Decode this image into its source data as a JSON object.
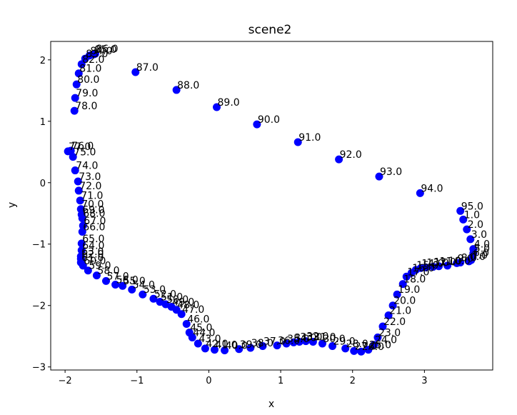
{
  "chart_data": {
    "type": "scatter",
    "title": "scene2",
    "xlabel": "x",
    "ylabel": "y",
    "xlim": [
      -2.2,
      3.95
    ],
    "ylim": [
      -3.05,
      2.3
    ],
    "xticks": [
      -2,
      -1,
      0,
      1,
      2,
      3
    ],
    "yticks": [
      -3,
      -2,
      -1,
      0,
      1,
      2
    ],
    "grid": false,
    "marker_color": "#0000ff",
    "points": [
      {
        "label": "0.0",
        "x": 3.62,
        "y": -1.28
      },
      {
        "label": "1.0",
        "x": 3.54,
        "y": -0.6
      },
      {
        "label": "2.0",
        "x": 3.59,
        "y": -0.76
      },
      {
        "label": "3.0",
        "x": 3.64,
        "y": -0.92
      },
      {
        "label": "4.0",
        "x": 3.68,
        "y": -1.08
      },
      {
        "label": "5.0",
        "x": 3.68,
        "y": -1.15
      },
      {
        "label": "6.0",
        "x": 3.67,
        "y": -1.22
      },
      {
        "label": "7.0",
        "x": 3.65,
        "y": -1.26
      },
      {
        "label": "8.0",
        "x": 3.5,
        "y": -1.3
      },
      {
        "label": "9.0",
        "x": 3.45,
        "y": -1.31
      },
      {
        "label": "10.0",
        "x": 3.32,
        "y": -1.35
      },
      {
        "label": "11.0",
        "x": 3.2,
        "y": -1.36
      },
      {
        "label": "12.0",
        "x": 3.12,
        "y": -1.37
      },
      {
        "label": "13.0",
        "x": 3.02,
        "y": -1.38
      },
      {
        "label": "14.0",
        "x": 2.95,
        "y": -1.39
      },
      {
        "label": "15.0",
        "x": 2.88,
        "y": -1.42
      },
      {
        "label": "16.0",
        "x": 2.82,
        "y": -1.47
      },
      {
        "label": "17.0",
        "x": 2.75,
        "y": -1.53
      },
      {
        "label": "18.0",
        "x": 2.7,
        "y": -1.65
      },
      {
        "label": "19.0",
        "x": 2.62,
        "y": -1.82
      },
      {
        "label": "20.0",
        "x": 2.56,
        "y": -2.0
      },
      {
        "label": "21.0",
        "x": 2.5,
        "y": -2.16
      },
      {
        "label": "22.0",
        "x": 2.42,
        "y": -2.34
      },
      {
        "label": "23.0",
        "x": 2.35,
        "y": -2.52
      },
      {
        "label": "24.0",
        "x": 2.3,
        "y": -2.64
      },
      {
        "label": "25.0",
        "x": 2.22,
        "y": -2.72
      },
      {
        "label": "26.0",
        "x": 2.12,
        "y": -2.75
      },
      {
        "label": "27.0",
        "x": 2.02,
        "y": -2.74
      },
      {
        "label": "28.0",
        "x": 1.9,
        "y": -2.7
      },
      {
        "label": "29.0",
        "x": 1.72,
        "y": -2.66
      },
      {
        "label": "30.0",
        "x": 1.58,
        "y": -2.62
      },
      {
        "label": "31.0",
        "x": 1.45,
        "y": -2.59
      },
      {
        "label": "32.0",
        "x": 1.35,
        "y": -2.58
      },
      {
        "label": "33.0",
        "x": 1.26,
        "y": -2.59
      },
      {
        "label": "34.0",
        "x": 1.18,
        "y": -2.6
      },
      {
        "label": "35.0",
        "x": 1.08,
        "y": -2.62
      },
      {
        "label": "36.0",
        "x": 0.95,
        "y": -2.65
      },
      {
        "label": "37.0",
        "x": 0.75,
        "y": -2.66
      },
      {
        "label": "38.0",
        "x": 0.58,
        "y": -2.69
      },
      {
        "label": "39.0",
        "x": 0.42,
        "y": -2.71
      },
      {
        "label": "40.0",
        "x": 0.22,
        "y": -2.73
      },
      {
        "label": "41.0",
        "x": 0.08,
        "y": -2.72
      },
      {
        "label": "42.0",
        "x": -0.05,
        "y": -2.7
      },
      {
        "label": "43.0",
        "x": -0.15,
        "y": -2.62
      },
      {
        "label": "44.0",
        "x": -0.23,
        "y": -2.52
      },
      {
        "label": "45.0",
        "x": -0.27,
        "y": -2.44
      },
      {
        "label": "46.0",
        "x": -0.31,
        "y": -2.3
      },
      {
        "label": "47.0",
        "x": -0.38,
        "y": -2.14
      },
      {
        "label": "48.0",
        "x": -0.45,
        "y": -2.07
      },
      {
        "label": "49.0",
        "x": -0.52,
        "y": -2.02
      },
      {
        "label": "50.0",
        "x": -0.6,
        "y": -1.98
      },
      {
        "label": "51.0",
        "x": -0.68,
        "y": -1.94
      },
      {
        "label": "52.0",
        "x": -0.77,
        "y": -1.89
      },
      {
        "label": "53.0",
        "x": -0.92,
        "y": -1.82
      },
      {
        "label": "54.0",
        "x": -1.07,
        "y": -1.74
      },
      {
        "label": "55.0",
        "x": -1.2,
        "y": -1.68
      },
      {
        "label": "56.0",
        "x": -1.3,
        "y": -1.66
      },
      {
        "label": "57.0",
        "x": -1.43,
        "y": -1.6
      },
      {
        "label": "58.0",
        "x": -1.56,
        "y": -1.51
      },
      {
        "label": "59.0",
        "x": -1.68,
        "y": -1.43
      },
      {
        "label": "60.0",
        "x": -1.75,
        "y": -1.35
      },
      {
        "label": "61.0",
        "x": -1.78,
        "y": -1.3
      },
      {
        "label": "62.0",
        "x": -1.78,
        "y": -1.24
      },
      {
        "label": "63.0",
        "x": -1.78,
        "y": -1.2
      },
      {
        "label": "64.0",
        "x": -1.77,
        "y": -1.1
      },
      {
        "label": "65.0",
        "x": -1.77,
        "y": -0.99
      },
      {
        "label": "66.0",
        "x": -1.76,
        "y": -0.8
      },
      {
        "label": "67.0",
        "x": -1.75,
        "y": -0.7
      },
      {
        "label": "68.0",
        "x": -1.76,
        "y": -0.58
      },
      {
        "label": "69.0",
        "x": -1.77,
        "y": -0.52
      },
      {
        "label": "70.0",
        "x": -1.78,
        "y": -0.43
      },
      {
        "label": "71.0",
        "x": -1.79,
        "y": -0.29
      },
      {
        "label": "72.0",
        "x": -1.81,
        "y": -0.13
      },
      {
        "label": "73.0",
        "x": -1.82,
        "y": 0.02
      },
      {
        "label": "74.0",
        "x": -1.86,
        "y": 0.2
      },
      {
        "label": "75.0",
        "x": -1.89,
        "y": 0.42
      },
      {
        "label": "76.0",
        "x": -1.92,
        "y": 0.52
      },
      {
        "label": "77.0",
        "x": -1.96,
        "y": 0.51
      },
      {
        "label": "78.0",
        "x": -1.87,
        "y": 1.17
      },
      {
        "label": "79.0",
        "x": -1.86,
        "y": 1.38
      },
      {
        "label": "80.0",
        "x": -1.84,
        "y": 1.6
      },
      {
        "label": "81.0",
        "x": -1.81,
        "y": 1.78
      },
      {
        "label": "82.0",
        "x": -1.77,
        "y": 1.93
      },
      {
        "label": "83.0",
        "x": -1.72,
        "y": 2.02
      },
      {
        "label": "84.0",
        "x": -1.66,
        "y": 2.07
      },
      {
        "label": "85.0",
        "x": -1.6,
        "y": 2.09
      },
      {
        "label": "86.0",
        "x": -1.58,
        "y": 2.1
      },
      {
        "label": "87.0",
        "x": -1.02,
        "y": 1.8
      },
      {
        "label": "88.0",
        "x": -0.45,
        "y": 1.51
      },
      {
        "label": "89.0",
        "x": 0.11,
        "y": 1.23
      },
      {
        "label": "90.0",
        "x": 0.67,
        "y": 0.95
      },
      {
        "label": "91.0",
        "x": 1.24,
        "y": 0.66
      },
      {
        "label": "92.0",
        "x": 1.81,
        "y": 0.38
      },
      {
        "label": "93.0",
        "x": 2.37,
        "y": 0.1
      },
      {
        "label": "94.0",
        "x": 2.94,
        "y": -0.17
      },
      {
        "label": "95.0",
        "x": 3.5,
        "y": -0.46
      }
    ]
  }
}
